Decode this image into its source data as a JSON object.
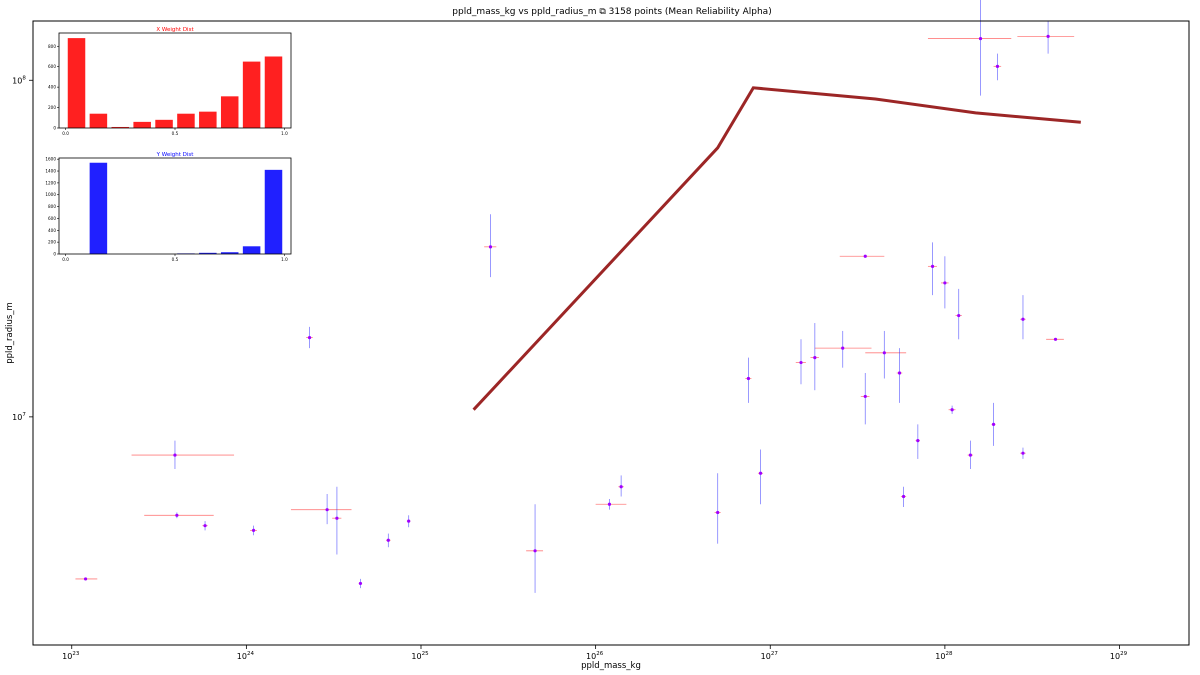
{
  "chart_data": [
    {
      "type": "scatter",
      "title": "ppld_mass_kg vs ppld_radius_m ⧉ 3158 points (Mean Reliability Alpha)",
      "xlabel": "ppld_mass_kg",
      "ylabel": "ppld_radius_m",
      "x_scale": "log",
      "y_scale": "log",
      "xlim": [
        6e+22,
        2.5e+29
      ],
      "ylim": [
        2100000.0,
        150000000.0
      ],
      "x_ticks": [
        {
          "value": 1e+23,
          "base": "10",
          "exp": "23"
        },
        {
          "value": 1e+24,
          "base": "10",
          "exp": "24"
        },
        {
          "value": 1e+25,
          "base": "10",
          "exp": "25"
        },
        {
          "value": 1e+26,
          "base": "10",
          "exp": "26"
        },
        {
          "value": 1e+27,
          "base": "10",
          "exp": "27"
        },
        {
          "value": 1e+28,
          "base": "10",
          "exp": "28"
        },
        {
          "value": 1e+29,
          "base": "10",
          "exp": "29"
        }
      ],
      "y_ticks": [
        {
          "value": 10000000.0,
          "base": "10",
          "exp": "7"
        },
        {
          "value": 100000000.0,
          "base": "10",
          "exp": "8"
        }
      ],
      "point_count": 3158,
      "colors": {
        "x_error": "#ff2a2a",
        "y_error": "#2a2aff",
        "point": "#a000ff",
        "trend": "#8b0000"
      },
      "trend_line": {
        "x": [
          2e+25,
          5e+26,
          8e+26,
          4e+27,
          1.5e+28,
          6e+28
        ],
        "y": [
          10500000.0,
          63000000.0,
          95000000.0,
          88000000.0,
          80000000.0,
          75000000.0
        ]
      },
      "points": [
        {
          "x": 1.2e+23,
          "y": 3300000.0,
          "xerr": [
            1.05e+23,
            1.4e+23
          ],
          "yerr": [
            3280000.0,
            3320000.0
          ]
        },
        {
          "x": 3.9e+23,
          "y": 7700000.0,
          "xerr": [
            2.2e+23,
            8.5e+23
          ],
          "yerr": [
            7000000.0,
            8500000.0
          ]
        },
        {
          "x": 4e+23,
          "y": 5100000.0,
          "xerr": [
            2.6e+23,
            6.5e+23
          ],
          "yerr": [
            5000000.0,
            5200000.0
          ]
        },
        {
          "x": 5.8e+23,
          "y": 4750000.0,
          "xerr": [
            5.6e+23,
            6e+23
          ],
          "yerr": [
            4600000.0,
            4900000.0
          ]
        },
        {
          "x": 1.1e+24,
          "y": 4600000.0,
          "xerr": [
            1.05e+24,
            1.15e+24
          ],
          "yerr": [
            4450000.0,
            4750000.0
          ]
        },
        {
          "x": 2.3e+24,
          "y": 17200000.0,
          "xerr": [
            2.2e+24,
            2.4e+24
          ],
          "yerr": [
            16000000.0,
            18500000.0
          ]
        },
        {
          "x": 2.9e+24,
          "y": 5300000.0,
          "xerr": [
            1.8e+24,
            4e+24
          ],
          "yerr": [
            4800000.0,
            5900000.0
          ]
        },
        {
          "x": 3.3e+24,
          "y": 5000000.0,
          "xerr": [
            3.1e+24,
            3.5e+24
          ],
          "yerr": [
            3900000.0,
            6200000.0
          ]
        },
        {
          "x": 4.5e+24,
          "y": 3200000.0,
          "xerr": [
            4.4e+24,
            4.6e+24
          ],
          "yerr": [
            3100000.0,
            3300000.0
          ]
        },
        {
          "x": 6.5e+24,
          "y": 4300000.0,
          "xerr": [
            6.3e+24,
            6.7e+24
          ],
          "yerr": [
            4100000.0,
            4500000.0
          ]
        },
        {
          "x": 8.5e+24,
          "y": 4900000.0,
          "xerr": [
            8.3e+24,
            8.7e+24
          ],
          "yerr": [
            4700000.0,
            5100000.0
          ]
        },
        {
          "x": 2.5e+25,
          "y": 32000000.0,
          "xerr": [
            2.3e+25,
            2.7e+25
          ],
          "yerr": [
            26000000.0,
            40000000.0
          ]
        },
        {
          "x": 4.5e+25,
          "y": 4000000.0,
          "xerr": [
            4e+25,
            5e+25
          ],
          "yerr": [
            3000000.0,
            5500000.0
          ]
        },
        {
          "x": 1.2e+26,
          "y": 5500000.0,
          "xerr": [
            1e+26,
            1.5e+26
          ],
          "yerr": [
            5300000.0,
            5700000.0
          ]
        },
        {
          "x": 5e+26,
          "y": 5200000.0,
          "xerr": [
            4.8e+26,
            5.2e+26
          ],
          "yerr": [
            4200000.0,
            6800000.0
          ]
        },
        {
          "x": 1.6e+28,
          "y": 133000000.0,
          "xerr": [
            8e+27,
            2.4e+28
          ],
          "yerr": [
            90000000.0,
            175000000.0
          ]
        },
        {
          "x": 3.9e+28,
          "y": 135000000.0,
          "xerr": [
            2.6e+28,
            5.5e+28
          ],
          "yerr": [
            120000000.0,
            150000000.0
          ]
        },
        {
          "x": 2e+28,
          "y": 110000000.0,
          "xerr": [
            1.9e+28,
            2.1e+28
          ],
          "yerr": [
            100000000.0,
            120000000.0
          ]
        },
        {
          "x": 4.3e+28,
          "y": 17000000.0,
          "xerr": [
            3.8e+28,
            4.8e+28
          ],
          "yerr": [
            16900000.0,
            17100000.0
          ]
        },
        {
          "x": 1.2e+28,
          "y": 20000000.0,
          "xerr": [
            1.15e+28,
            1.25e+28
          ],
          "yerr": [
            17000000.0,
            24000000.0
          ]
        },
        {
          "x": 2.8e+28,
          "y": 19500000.0,
          "xerr": [
            2.7e+28,
            2.9e+28
          ],
          "yerr": [
            17000000.0,
            23000000.0
          ]
        },
        {
          "x": 2.8e+28,
          "y": 7800000.0,
          "xerr": [
            2.7e+28,
            2.9e+28
          ],
          "yerr": [
            7500000.0,
            8100000.0
          ]
        },
        {
          "x": 1.4e+28,
          "y": 7700000.0,
          "xerr": [
            1.35e+28,
            1.45e+28
          ],
          "yerr": [
            7000000.0,
            8500000.0
          ]
        },
        {
          "x": 1.9e+28,
          "y": 9500000.0,
          "xerr": [
            1.85e+28,
            1.95e+28
          ],
          "yerr": [
            8200000.0,
            11000000.0
          ]
        },
        {
          "x": 1.1e+28,
          "y": 10500000.0,
          "xerr": [
            1.05e+28,
            1.15e+28
          ],
          "yerr": [
            10200000.0,
            10800000.0
          ]
        },
        {
          "x": 5.8e+27,
          "y": 5800000.0,
          "xerr": [
            5.6e+27,
            6e+27
          ],
          "yerr": [
            5400000.0,
            6200000.0
          ]
        },
        {
          "x": 3.5e+27,
          "y": 30000000.0,
          "xerr": [
            2.5e+27,
            4.5e+27
          ],
          "yerr": [
            29900000.0,
            30100000.0
          ]
        },
        {
          "x": 2.6e+27,
          "y": 16000000.0,
          "xerr": [
            1.8e+27,
            3.8e+27
          ],
          "yerr": [
            14000000.0,
            18000000.0
          ]
        },
        {
          "x": 1.8e+27,
          "y": 15000000.0,
          "xerr": [
            1.7e+27,
            1.9e+27
          ],
          "yerr": [
            12000000.0,
            19000000.0
          ]
        },
        {
          "x": 4.5e+27,
          "y": 15500000.0,
          "xerr": [
            3.5e+27,
            6e+27
          ],
          "yerr": [
            13000000.0,
            18000000.0
          ]
        },
        {
          "x": 1e+28,
          "y": 25000000.0,
          "xerr": [
            9.5e+27,
            1.05e+28
          ],
          "yerr": [
            21000000.0,
            30000000.0
          ]
        },
        {
          "x": 8.5e+27,
          "y": 28000000.0,
          "xerr": [
            8e+27,
            9e+27
          ],
          "yerr": [
            23000000.0,
            33000000.0
          ]
        },
        {
          "x": 5.5e+27,
          "y": 13500000.0,
          "xerr": [
            5.3e+27,
            5.7e+27
          ],
          "yerr": [
            11000000.0,
            16000000.0
          ]
        },
        {
          "x": 3.5e+27,
          "y": 11500000.0,
          "xerr": [
            3.3e+27,
            3.7e+27
          ],
          "yerr": [
            9500000.0,
            13500000.0
          ]
        },
        {
          "x": 1.5e+27,
          "y": 14500000.0,
          "xerr": [
            1.4e+27,
            1.6e+27
          ],
          "yerr": [
            12500000.0,
            17000000.0
          ]
        },
        {
          "x": 7.5e+26,
          "y": 13000000.0,
          "xerr": [
            7.2e+26,
            7.8e+26
          ],
          "yerr": [
            11000000.0,
            15000000.0
          ]
        },
        {
          "x": 7e+27,
          "y": 8500000.0,
          "xerr": [
            6.8e+27,
            7.2e+27
          ],
          "yerr": [
            7500000.0,
            9500000.0
          ]
        },
        {
          "x": 1.4e+26,
          "y": 6200000.0,
          "xerr": [
            1.35e+26,
            1.45e+26
          ],
          "yerr": [
            5800000.0,
            6700000.0
          ]
        },
        {
          "x": 8.8e+26,
          "y": 6800000.0,
          "xerr": [
            8.5e+26,
            9.1e+26
          ],
          "yerr": [
            5500000.0,
            8000000.0
          ]
        }
      ]
    },
    {
      "type": "bar",
      "title": "X Weight Dist",
      "title_color": "#ff0000",
      "bar_color": "#ff2020",
      "categories": [
        0.05,
        0.15,
        0.25,
        0.35,
        0.45,
        0.55,
        0.65,
        0.75,
        0.85,
        0.95
      ],
      "values": [
        880,
        140,
        10,
        60,
        80,
        140,
        160,
        310,
        650,
        700
      ],
      "xlim": [
        -0.03,
        1.03
      ],
      "ylim": [
        0,
        930
      ],
      "x_ticks": [
        "0.0",
        "0.5",
        "1.0"
      ],
      "y_ticks": [
        "0",
        "200",
        "400",
        "600",
        "800"
      ]
    },
    {
      "type": "bar",
      "title": "Y Weight Dist",
      "title_color": "#0000ff",
      "bar_color": "#2020ff",
      "categories": [
        0.05,
        0.15,
        0.25,
        0.35,
        0.45,
        0.55,
        0.65,
        0.75,
        0.85,
        0.95
      ],
      "values": [
        0,
        1540,
        0,
        0,
        0,
        10,
        20,
        30,
        130,
        1420
      ],
      "xlim": [
        -0.03,
        1.03
      ],
      "ylim": [
        0,
        1620
      ],
      "x_ticks": [
        "0.0",
        "0.5",
        "1.0"
      ],
      "y_ticks": [
        "0",
        "200",
        "400",
        "600",
        "800",
        "1000",
        "1200",
        "1400",
        "1600"
      ]
    }
  ]
}
